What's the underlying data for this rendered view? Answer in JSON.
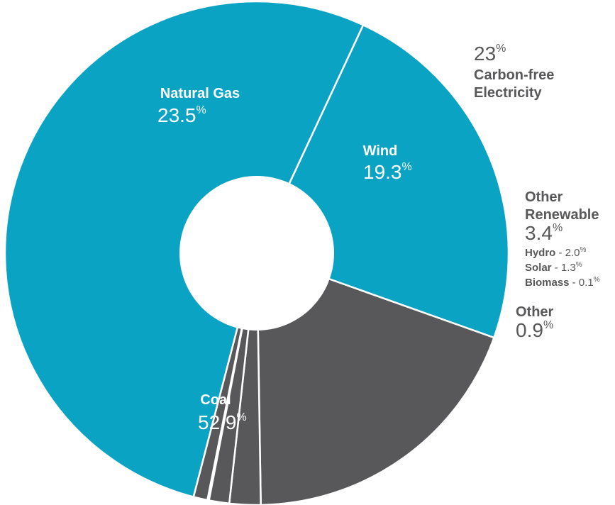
{
  "chart_data": {
    "type": "pie",
    "donut": true,
    "legend": "none",
    "slices": [
      {
        "name": "Natural Gas",
        "value": 23.5,
        "value_text": "23.5",
        "unit": "%",
        "color": "#0ba3c4"
      },
      {
        "name": "Wind",
        "value": 19.3,
        "value_text": "19.3",
        "unit": "%",
        "color": "#58585a"
      },
      {
        "name": "Hydro",
        "value": 2.0,
        "value_text": "2.0",
        "unit": "%",
        "color": "#58585a"
      },
      {
        "name": "Solar",
        "value": 1.3,
        "value_text": "1.3",
        "unit": "%",
        "color": "#58585a"
      },
      {
        "name": "Biomass",
        "value": 0.1,
        "value_text": "0.1",
        "unit": "%",
        "color": "#58585a"
      },
      {
        "name": "Other",
        "value": 0.9,
        "value_text": "0.9",
        "unit": "%",
        "color": "#58585a"
      },
      {
        "name": "Coal",
        "value": 52.9,
        "value_text": "52.9",
        "unit": "%",
        "color": "#0ba3c4"
      }
    ],
    "group_labels": {
      "carbon_free": {
        "value_text": "23",
        "unit": "%",
        "line1": "Carbon-free",
        "line2": "Electricity"
      },
      "other_renewable": {
        "line1": "Other",
        "line2": "Renewable",
        "value_text": "3.4",
        "unit": "%"
      }
    },
    "breakdown": [
      {
        "name": "Hydro",
        "text": " - 2.0",
        "unit": "%"
      },
      {
        "name": "Solar",
        "text": " - 1.3",
        "unit": "%"
      },
      {
        "name": "Biomass",
        "text": " - 0.1",
        "unit": "%"
      }
    ]
  }
}
